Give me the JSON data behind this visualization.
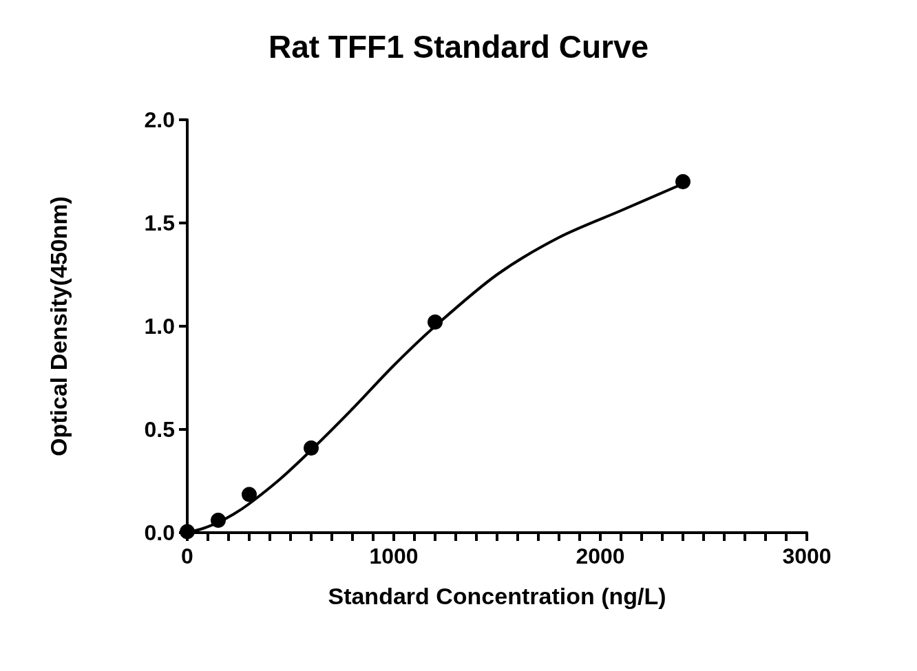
{
  "chart_data": {
    "type": "scatter",
    "title": "Rat TFF1 Standard Curve",
    "xlabel": "Standard Concentration (ng/L)",
    "ylabel": "Optical Density(450nm)",
    "series": [
      {
        "color": "#000000",
        "marker": "circle",
        "x": [
          0,
          150,
          300,
          600,
          1200,
          2400
        ],
        "values": [
          0.005,
          0.06,
          0.185,
          0.41,
          1.02,
          1.7
        ]
      },
      {
        "type": "line",
        "color": "#000000",
        "marker": "none",
        "line_style": "solid",
        "x": [
          0,
          75,
          150,
          225,
          300,
          450,
          600,
          800,
          1000,
          1200,
          1500,
          1800,
          2100,
          2400
        ],
        "values": [
          0,
          0.02,
          0.05,
          0.09,
          0.14,
          0.26,
          0.4,
          0.6,
          0.81,
          1.0,
          1.25,
          1.43,
          1.56,
          1.69
        ]
      }
    ],
    "xlim": [
      0,
      3000
    ],
    "xticks": [
      {
        "value": 0,
        "label": "0"
      },
      {
        "value": 100,
        "label": null
      },
      {
        "value": 200,
        "label": null
      },
      {
        "value": 300,
        "label": null
      },
      {
        "value": 400,
        "label": null
      },
      {
        "value": 500,
        "label": null
      },
      {
        "value": 600,
        "label": null
      },
      {
        "value": 700,
        "label": null
      },
      {
        "value": 800,
        "label": null
      },
      {
        "value": 900,
        "label": null
      },
      {
        "value": 1000,
        "label": "1000"
      },
      {
        "value": 1100,
        "label": null
      },
      {
        "value": 1200,
        "label": null
      },
      {
        "value": 1300,
        "label": null
      },
      {
        "value": 1400,
        "label": null
      },
      {
        "value": 1500,
        "label": null
      },
      {
        "value": 1600,
        "label": null
      },
      {
        "value": 1700,
        "label": null
      },
      {
        "value": 1800,
        "label": null
      },
      {
        "value": 1900,
        "label": null
      },
      {
        "value": 2000,
        "label": "2000"
      },
      {
        "value": 2100,
        "label": null
      },
      {
        "value": 2200,
        "label": null
      },
      {
        "value": 2300,
        "label": null
      },
      {
        "value": 2400,
        "label": null
      },
      {
        "value": 2500,
        "label": null
      },
      {
        "value": 2600,
        "label": null
      },
      {
        "value": 2700,
        "label": null
      },
      {
        "value": 2800,
        "label": null
      },
      {
        "value": 2900,
        "label": null
      },
      {
        "value": 3000,
        "label": "3000"
      }
    ],
    "ylim": [
      0,
      2
    ],
    "yticks": [
      {
        "value": 0,
        "label": "0.0"
      },
      {
        "value": 0.5,
        "label": "0.5"
      },
      {
        "value": 1,
        "label": "1.0"
      },
      {
        "value": 1.5,
        "label": "1.5"
      },
      {
        "value": 2,
        "label": "2.0"
      }
    ],
    "grid": false
  }
}
